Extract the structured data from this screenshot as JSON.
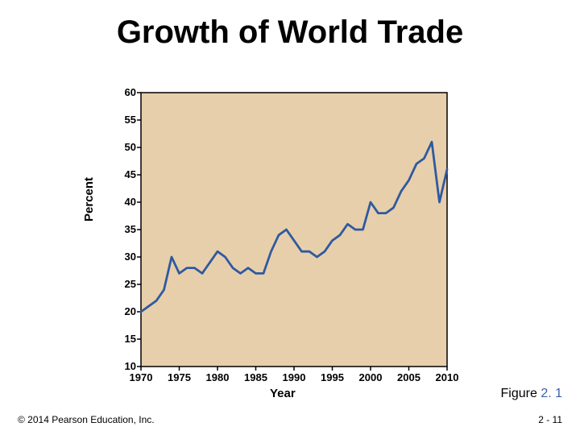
{
  "title": "Growth of World Trade",
  "chart": {
    "type": "line",
    "ylabel": "Percent",
    "xlabel": "Year",
    "xlim": [
      1970,
      2010
    ],
    "ylim": [
      10,
      60
    ],
    "ytick_step": 5,
    "xtick_step": 5,
    "yticks": [
      10,
      15,
      20,
      25,
      30,
      35,
      40,
      45,
      50,
      55,
      60
    ],
    "xticks": [
      1970,
      1975,
      1980,
      1985,
      1990,
      1995,
      2000,
      2005,
      2010
    ],
    "plot_bg": "#e8cfab",
    "page_bg": "#ffffff",
    "border_color": "#000000",
    "tick_color": "#000000",
    "line_color": "#2e5aa0",
    "line_width": 2.8,
    "label_fontsize": 15,
    "tick_fontsize": 13,
    "title_fontsize": 40,
    "data": {
      "x": [
        1970,
        1971,
        1972,
        1973,
        1974,
        1975,
        1976,
        1977,
        1978,
        1979,
        1980,
        1981,
        1982,
        1983,
        1984,
        1985,
        1986,
        1987,
        1988,
        1989,
        1990,
        1991,
        1992,
        1993,
        1994,
        1995,
        1996,
        1997,
        1998,
        1999,
        2000,
        2001,
        2002,
        2003,
        2004,
        2005,
        2006,
        2007,
        2008,
        2009,
        2010
      ],
      "y": [
        20,
        21,
        22,
        24,
        30,
        27,
        28,
        28,
        27,
        29,
        31,
        30,
        28,
        27,
        28,
        27,
        27,
        31,
        34,
        35,
        33,
        31,
        31,
        30,
        31,
        33,
        34,
        36,
        35,
        35,
        40,
        38,
        38,
        39,
        42,
        44,
        47,
        48,
        51,
        40,
        46
      ]
    }
  },
  "figure_label_prefix": "Figure ",
  "figure_number": "2. 1",
  "footer_left": "© 2014 Pearson Education, Inc.",
  "footer_right": "2 - 11"
}
